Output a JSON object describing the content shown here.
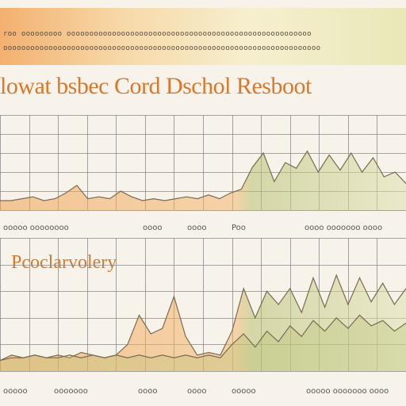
{
  "header": {
    "lines": [
      "roo ooooooooo oooooooooooooooooooooooooooooooooooooooooooooooooooooo",
      "oooooooooooooooooooooooooooooooooooooooooooooooooooooooooooooooooooooo"
    ]
  },
  "colors": {
    "accent_orange": "#f0a050",
    "accent_green": "#b8c070",
    "title_orange": "#d9782a",
    "grid": "#8a8a8a",
    "line_dark": "#7a6a50"
  },
  "chart_data": [
    {
      "type": "line",
      "title": "lowat bsbec Cord Dschol Resboot",
      "xlabel": "",
      "ylabel": "",
      "grid": true,
      "x_tick_labels": [
        "ooooo oooooooo",
        "oooo",
        "oooo",
        "Poo",
        "oooo ooooooo oooo"
      ],
      "series": [
        {
          "values": [
            0.1,
            0.1,
            0.12,
            0.14,
            0.1,
            0.12,
            0.18,
            0.26,
            0.12,
            0.14,
            0.12,
            0.2,
            0.14,
            0.1,
            0.12,
            0.1,
            0.12,
            0.14,
            0.12,
            0.16,
            0.12,
            0.18,
            0.22,
            0.45,
            0.6,
            0.3,
            0.5,
            0.44,
            0.62,
            0.4,
            0.58,
            0.42,
            0.6,
            0.4,
            0.55,
            0.35,
            0.4,
            0.28
          ]
        }
      ]
    },
    {
      "type": "line",
      "title": "Pcoclarvolery",
      "xlabel": "",
      "ylabel": "",
      "grid": true,
      "x_tick_labels": [
        "ooooo",
        "ooooooo",
        "oooo",
        "oooo",
        "ooooo",
        "ooooo ooooooo oooo"
      ],
      "series": [
        {
          "values": [
            0.08,
            0.12,
            0.1,
            0.12,
            0.1,
            0.12,
            0.1,
            0.14,
            0.12,
            0.1,
            0.12,
            0.2,
            0.42,
            0.28,
            0.32,
            0.56,
            0.26,
            0.12,
            0.14,
            0.12,
            0.3,
            0.62,
            0.4,
            0.6,
            0.5,
            0.62,
            0.44,
            0.7,
            0.48,
            0.72,
            0.5,
            0.7,
            0.52,
            0.66,
            0.5,
            0.62
          ]
        },
        {
          "values": [
            0.08,
            0.1,
            0.1,
            0.12,
            0.1,
            0.1,
            0.12,
            0.1,
            0.12,
            0.1,
            0.12,
            0.1,
            0.12,
            0.1,
            0.12,
            0.1,
            0.12,
            0.1,
            0.12,
            0.1,
            0.2,
            0.28,
            0.18,
            0.3,
            0.22,
            0.34,
            0.26,
            0.38,
            0.3,
            0.4,
            0.32,
            0.42,
            0.34,
            0.38,
            0.3,
            0.36
          ]
        }
      ]
    }
  ]
}
